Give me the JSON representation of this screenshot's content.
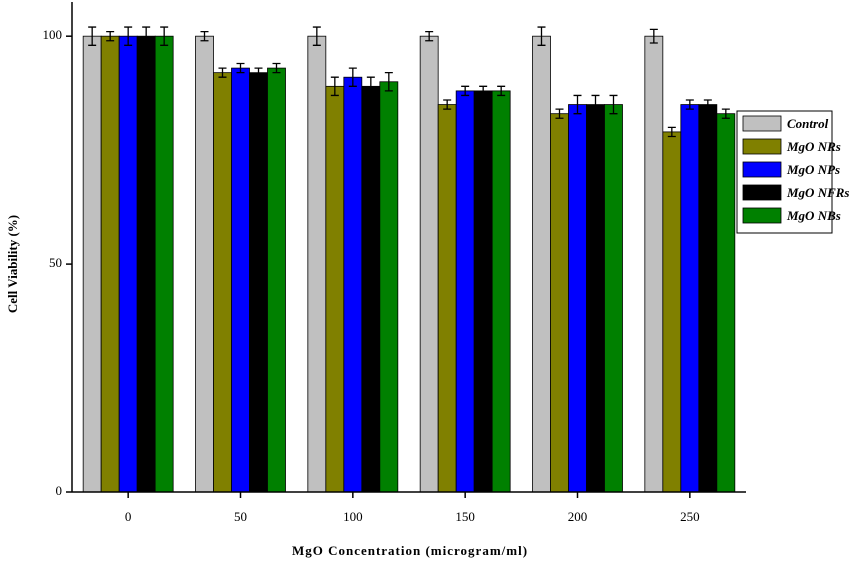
{
  "chart_data": {
    "type": "bar",
    "x_label": "MgO Concentration (microgram/ml)",
    "y_label": "Cell Viability (%)",
    "categories": [
      "0",
      "50",
      "100",
      "150",
      "200",
      "250"
    ],
    "series": [
      {
        "name": "Control",
        "color": "#c0c0c0",
        "values": [
          100,
          100,
          100,
          100,
          100,
          100
        ],
        "errors": [
          2,
          1,
          2,
          1,
          2,
          1.5
        ]
      },
      {
        "name": "MgO NRs",
        "color": "#808000",
        "values": [
          100,
          92,
          89,
          85,
          83,
          79
        ],
        "errors": [
          1,
          1,
          2,
          1,
          1,
          1
        ]
      },
      {
        "name": "MgO NPs",
        "color": "#0000ff",
        "values": [
          100,
          93,
          91,
          88,
          85,
          85
        ],
        "errors": [
          2,
          1,
          2,
          1,
          2,
          1
        ]
      },
      {
        "name": "MgO NFRs",
        "color": "#000000",
        "values": [
          100,
          92,
          89,
          88,
          85,
          85
        ],
        "errors": [
          2,
          1,
          2,
          1,
          2,
          1
        ]
      },
      {
        "name": "MgO NBs",
        "color": "#008000",
        "values": [
          100,
          93,
          90,
          88,
          85,
          83
        ],
        "errors": [
          2,
          1,
          2,
          1,
          2,
          1
        ]
      }
    ],
    "ylim": [
      0,
      107.5
    ],
    "yticks": [
      0,
      50,
      100
    ],
    "legend": "right"
  }
}
